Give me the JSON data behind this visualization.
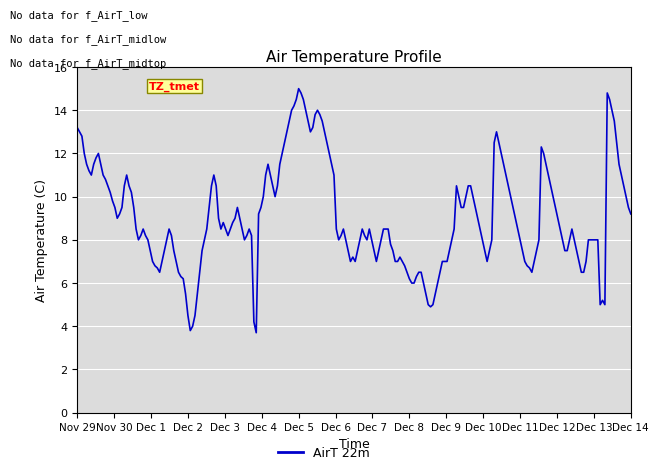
{
  "title": "Air Temperature Profile",
  "xlabel": "Time",
  "ylabel": "Air Temperature (C)",
  "ylim": [
    0,
    16
  ],
  "yticks": [
    0,
    2,
    4,
    6,
    8,
    10,
    12,
    14,
    16
  ],
  "line_color": "#0000CC",
  "line_width": 1.2,
  "legend_label": "AirT 22m",
  "bg_color": "#DCDCDC",
  "text_annotations": [
    "No data for f_AirT_low",
    "No data for f_AirT_midlow",
    "No data for f_AirT_midtop"
  ],
  "tz_label": "TZ_tmet",
  "x_tick_labels": [
    "Nov 29",
    "Nov 30",
    "Dec 1",
    "Dec 2",
    "Dec 3",
    "Dec 4",
    "Dec 5",
    "Dec 6",
    "Dec 7",
    "Dec 8",
    "Dec 9",
    "Dec 10",
    "Dec 11",
    "Dec 12",
    "Dec 13",
    "Dec 14"
  ],
  "temperatures": [
    13.2,
    13.0,
    12.8,
    12.0,
    11.5,
    11.2,
    11.0,
    11.5,
    11.8,
    12.0,
    11.5,
    11.0,
    10.8,
    10.5,
    10.2,
    9.8,
    9.5,
    9.0,
    9.2,
    9.5,
    10.5,
    11.0,
    10.5,
    10.2,
    9.5,
    8.5,
    8.0,
    8.2,
    8.5,
    8.2,
    8.0,
    7.5,
    7.0,
    6.8,
    6.7,
    6.5,
    7.0,
    7.5,
    8.0,
    8.5,
    8.2,
    7.5,
    7.0,
    6.5,
    6.3,
    6.2,
    5.5,
    4.5,
    3.8,
    4.0,
    4.5,
    5.5,
    6.5,
    7.5,
    8.0,
    8.5,
    9.5,
    10.5,
    11.0,
    10.5,
    9.0,
    8.5,
    8.8,
    8.5,
    8.2,
    8.5,
    8.8,
    9.0,
    9.5,
    9.0,
    8.5,
    8.0,
    8.2,
    8.5,
    8.2,
    4.2,
    3.7,
    9.2,
    9.5,
    10.0,
    11.0,
    11.5,
    11.0,
    10.5,
    10.0,
    10.5,
    11.5,
    12.0,
    12.5,
    13.0,
    13.5,
    14.0,
    14.2,
    14.5,
    15.0,
    14.8,
    14.5,
    14.0,
    13.5,
    13.0,
    13.2,
    13.8,
    14.0,
    13.8,
    13.5,
    13.0,
    12.5,
    12.0,
    11.5,
    11.0,
    8.5,
    8.0,
    8.2,
    8.5,
    8.0,
    7.5,
    7.0,
    7.2,
    7.0,
    7.5,
    8.0,
    8.5,
    8.2,
    8.0,
    8.5,
    8.0,
    7.5,
    7.0,
    7.5,
    8.0,
    8.5,
    8.5,
    8.5,
    7.8,
    7.5,
    7.0,
    7.0,
    7.2,
    7.0,
    6.8,
    6.5,
    6.2,
    6.0,
    6.0,
    6.3,
    6.5,
    6.5,
    6.0,
    5.5,
    5.0,
    4.9,
    5.0,
    5.5,
    6.0,
    6.5,
    7.0,
    7.0,
    7.0,
    7.5,
    8.0,
    8.5,
    10.5,
    10.0,
    9.5,
    9.5,
    10.0,
    10.5,
    10.5,
    10.0,
    9.5,
    9.0,
    8.5,
    8.0,
    7.5,
    7.0,
    7.5,
    8.0,
    12.5,
    13.0,
    12.5,
    12.0,
    11.5,
    11.0,
    10.5,
    10.0,
    9.5,
    9.0,
    8.5,
    8.0,
    7.5,
    7.0,
    6.8,
    6.7,
    6.5,
    7.0,
    7.5,
    8.0,
    12.3,
    12.0,
    11.5,
    11.0,
    10.5,
    10.0,
    9.5,
    9.0,
    8.5,
    8.0,
    7.5,
    7.5,
    8.0,
    8.5,
    8.0,
    7.5,
    7.0,
    6.5,
    6.5,
    7.0,
    8.0,
    8.0,
    8.0,
    8.0,
    8.0,
    5.0,
    5.2,
    5.0,
    14.8,
    14.5,
    14.0,
    13.5,
    12.5,
    11.5,
    11.0,
    10.5,
    10.0,
    9.5,
    9.2
  ]
}
